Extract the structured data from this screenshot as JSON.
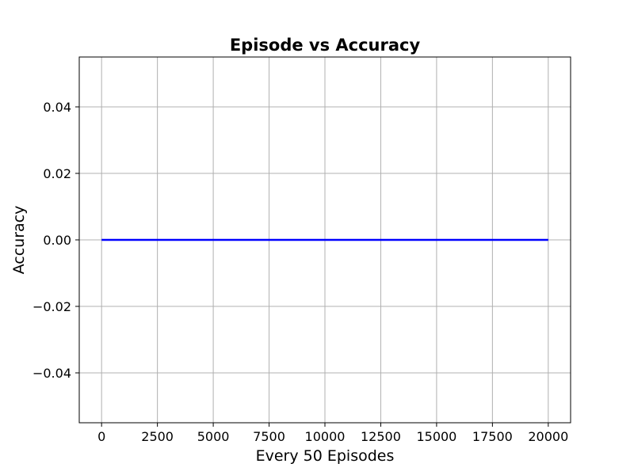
{
  "chart_data": {
    "type": "line",
    "title": "Episode vs Accuracy",
    "xlabel": "Every 50 Episodes",
    "ylabel": "Accuracy",
    "xlim": [
      -1000,
      21000
    ],
    "ylim": [
      -0.055,
      0.055
    ],
    "grid": true,
    "x_ticks": [
      0,
      2500,
      5000,
      7500,
      10000,
      12500,
      15000,
      17500,
      20000
    ],
    "x_tick_labels": [
      "0",
      "2500",
      "5000",
      "7500",
      "10000",
      "12500",
      "15000",
      "17500",
      "20000"
    ],
    "y_ticks": [
      -0.04,
      -0.02,
      0.0,
      0.02,
      0.04
    ],
    "y_tick_labels": [
      "−0.04",
      "−0.02",
      "0.00",
      "0.02",
      "0.04"
    ],
    "series": [
      {
        "color": "#0000ff",
        "x": [
          0,
          20000
        ],
        "y": [
          0.0,
          0.0
        ]
      }
    ]
  }
}
